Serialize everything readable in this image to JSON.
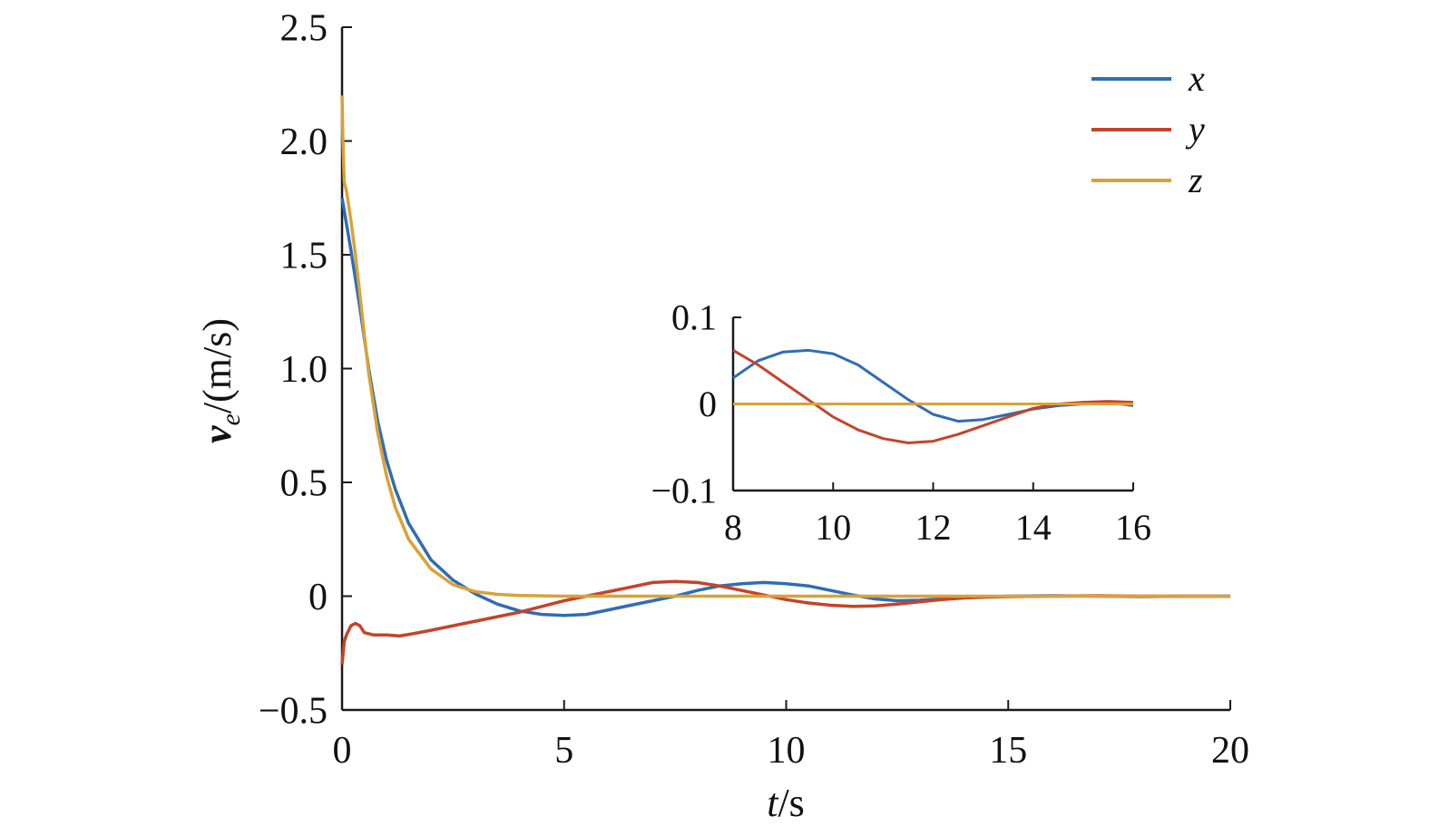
{
  "chart_data": {
    "type": "line",
    "xlabel": {
      "var": "t",
      "unit": "/s"
    },
    "ylabel": {
      "var": "v",
      "sub": "e",
      "unit": "/(m/s)"
    },
    "xlim": [
      0,
      20
    ],
    "ylim": [
      -0.5,
      2.5
    ],
    "xticks": [
      "0",
      "5",
      "10",
      "15",
      "20"
    ],
    "yticks": [
      "−0.5",
      "0",
      "0.5",
      "1.0",
      "1.5",
      "2.0",
      "2.5"
    ],
    "grid": false,
    "legend_position": "top-right",
    "series": [
      {
        "name": "x",
        "color": "#2f6db5",
        "x": [
          0,
          0.2,
          0.4,
          0.6,
          0.8,
          1.0,
          1.2,
          1.5,
          2.0,
          2.5,
          3.0,
          3.5,
          4.0,
          4.5,
          5.0,
          5.5,
          6.0,
          6.5,
          7.0,
          7.5,
          8.0,
          8.5,
          9.0,
          9.5,
          10.0,
          10.5,
          11.0,
          11.5,
          12.0,
          12.5,
          13.0,
          13.5,
          14.0,
          14.5,
          15.0,
          16.0,
          17.0,
          18.0,
          19.0,
          20.0
        ],
        "y": [
          1.75,
          1.52,
          1.27,
          1.0,
          0.77,
          0.6,
          0.47,
          0.32,
          0.16,
          0.07,
          0.01,
          -0.035,
          -0.065,
          -0.08,
          -0.085,
          -0.08,
          -0.06,
          -0.04,
          -0.02,
          0.0,
          0.025,
          0.045,
          0.055,
          0.06,
          0.055,
          0.045,
          0.025,
          0.005,
          -0.012,
          -0.02,
          -0.018,
          -0.012,
          -0.006,
          -0.002,
          0.0,
          0.002,
          0.0,
          -0.002,
          0.0,
          0.0
        ]
      },
      {
        "name": "y",
        "color": "#c5432a",
        "x": [
          0,
          0.05,
          0.1,
          0.2,
          0.3,
          0.4,
          0.5,
          0.7,
          1.0,
          1.3,
          1.6,
          2.0,
          2.5,
          3.0,
          3.5,
          4.0,
          4.5,
          5.0,
          5.5,
          6.0,
          6.5,
          7.0,
          7.5,
          8.0,
          8.5,
          9.0,
          9.5,
          10.0,
          10.5,
          11.0,
          11.5,
          12.0,
          12.5,
          13.0,
          13.5,
          14.0,
          14.5,
          15.0,
          16.0,
          17.0,
          18.0,
          19.0,
          20.0
        ],
        "y": [
          -0.3,
          -0.2,
          -0.17,
          -0.13,
          -0.12,
          -0.13,
          -0.16,
          -0.17,
          -0.17,
          -0.175,
          -0.165,
          -0.15,
          -0.13,
          -0.11,
          -0.09,
          -0.07,
          -0.045,
          -0.02,
          0.0,
          0.02,
          0.04,
          0.06,
          0.065,
          0.06,
          0.045,
          0.025,
          0.005,
          -0.015,
          -0.03,
          -0.04,
          -0.045,
          -0.043,
          -0.035,
          -0.025,
          -0.015,
          -0.008,
          -0.004,
          -0.002,
          0.0,
          0.002,
          0.0,
          0.0,
          0.0
        ]
      },
      {
        "name": "z",
        "color": "#d9a238",
        "x": [
          0,
          0.02,
          0.05,
          0.1,
          0.2,
          0.3,
          0.4,
          0.5,
          0.6,
          0.8,
          1.0,
          1.2,
          1.5,
          2.0,
          2.5,
          3.0,
          3.5,
          4.0,
          5.0,
          6.0,
          8.0,
          10.0,
          12.0,
          14.0,
          16.0,
          18.0,
          20.0
        ],
        "y": [
          2.2,
          2.0,
          1.82,
          1.78,
          1.65,
          1.5,
          1.33,
          1.15,
          0.98,
          0.72,
          0.53,
          0.39,
          0.25,
          0.12,
          0.05,
          0.02,
          0.008,
          0.003,
          0.0,
          0.0,
          0.0,
          0.0,
          0.0,
          0.0,
          0.0,
          0.0,
          0.0
        ]
      }
    ],
    "inset": {
      "xlim": [
        8,
        16
      ],
      "ylim": [
        -0.1,
        0.1
      ],
      "xticks": [
        "8",
        "10",
        "12",
        "14",
        "16"
      ],
      "yticks": [
        "−0.1",
        "0",
        "0.1"
      ],
      "series": [
        {
          "name": "x",
          "color": "#2f6db5",
          "x": [
            8.0,
            8.5,
            9.0,
            9.5,
            10.0,
            10.5,
            11.0,
            11.5,
            12.0,
            12.5,
            13.0,
            13.5,
            14.0,
            14.5,
            15.0,
            15.5,
            16.0
          ],
          "y": [
            0.03,
            0.05,
            0.06,
            0.062,
            0.058,
            0.045,
            0.025,
            0.005,
            -0.012,
            -0.02,
            -0.018,
            -0.012,
            -0.006,
            -0.002,
            0.0,
            0.002,
            -0.002
          ]
        },
        {
          "name": "y",
          "color": "#c5432a",
          "x": [
            8.0,
            8.5,
            9.0,
            9.5,
            10.0,
            10.5,
            11.0,
            11.5,
            12.0,
            12.5,
            13.0,
            13.5,
            14.0,
            14.5,
            15.0,
            15.5,
            16.0
          ],
          "y": [
            0.062,
            0.045,
            0.025,
            0.005,
            -0.015,
            -0.03,
            -0.04,
            -0.045,
            -0.043,
            -0.035,
            -0.025,
            -0.015,
            -0.005,
            0.0,
            0.002,
            0.003,
            0.002
          ]
        },
        {
          "name": "z",
          "color": "#d9a238",
          "x": [
            8.0,
            16.0
          ],
          "y": [
            0.0,
            0.0
          ]
        }
      ]
    }
  }
}
